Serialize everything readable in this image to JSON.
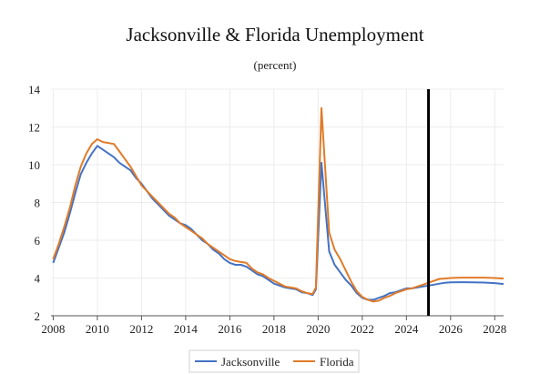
{
  "chart_data": {
    "type": "line",
    "title": "Jacksonville & Florida Unemployment",
    "subtitle": "(percent)",
    "xlabel": "",
    "ylabel": "",
    "xlim": [
      2007.9,
      2028.4
    ],
    "ylim": [
      2,
      14
    ],
    "x_ticks": [
      "2008",
      "2010",
      "2012",
      "2014",
      "2016",
      "2018",
      "2020",
      "2022",
      "2024",
      "2026",
      "2028"
    ],
    "y_ticks": [
      "2",
      "4",
      "6",
      "8",
      "10",
      "12",
      "14"
    ],
    "grid": true,
    "legend_position": "bottom",
    "forecast_line_x": 2025.0,
    "series": [
      {
        "name": "Jacksonville",
        "color": "#4472c4",
        "points": [
          [
            2008.0,
            4.8
          ],
          [
            2008.25,
            5.6
          ],
          [
            2008.5,
            6.4
          ],
          [
            2008.75,
            7.4
          ],
          [
            2009.0,
            8.5
          ],
          [
            2009.25,
            9.5
          ],
          [
            2009.5,
            10.1
          ],
          [
            2009.75,
            10.6
          ],
          [
            2010.0,
            11.0
          ],
          [
            2010.25,
            10.8
          ],
          [
            2010.5,
            10.6
          ],
          [
            2010.75,
            10.4
          ],
          [
            2011.0,
            10.1
          ],
          [
            2011.25,
            9.9
          ],
          [
            2011.5,
            9.7
          ],
          [
            2011.75,
            9.3
          ],
          [
            2012.0,
            9.0
          ],
          [
            2012.25,
            8.6
          ],
          [
            2012.5,
            8.2
          ],
          [
            2012.75,
            7.9
          ],
          [
            2013.0,
            7.6
          ],
          [
            2013.25,
            7.3
          ],
          [
            2013.5,
            7.1
          ],
          [
            2013.75,
            6.9
          ],
          [
            2014.0,
            6.8
          ],
          [
            2014.25,
            6.6
          ],
          [
            2014.5,
            6.3
          ],
          [
            2014.75,
            6.0
          ],
          [
            2015.0,
            5.8
          ],
          [
            2015.25,
            5.5
          ],
          [
            2015.5,
            5.3
          ],
          [
            2015.75,
            5.0
          ],
          [
            2016.0,
            4.8
          ],
          [
            2016.25,
            4.7
          ],
          [
            2016.5,
            4.7
          ],
          [
            2016.75,
            4.6
          ],
          [
            2017.0,
            4.4
          ],
          [
            2017.25,
            4.2
          ],
          [
            2017.5,
            4.1
          ],
          [
            2017.75,
            3.9
          ],
          [
            2018.0,
            3.7
          ],
          [
            2018.25,
            3.6
          ],
          [
            2018.5,
            3.5
          ],
          [
            2018.75,
            3.45
          ],
          [
            2019.0,
            3.4
          ],
          [
            2019.25,
            3.25
          ],
          [
            2019.5,
            3.2
          ],
          [
            2019.75,
            3.1
          ],
          [
            2019.9,
            3.4
          ],
          [
            2020.15,
            10.1
          ],
          [
            2020.5,
            5.4
          ],
          [
            2020.75,
            4.7
          ],
          [
            2021.0,
            4.3
          ],
          [
            2021.25,
            3.9
          ],
          [
            2021.5,
            3.6
          ],
          [
            2021.75,
            3.2
          ],
          [
            2022.0,
            2.95
          ],
          [
            2022.25,
            2.85
          ],
          [
            2022.5,
            2.85
          ],
          [
            2022.75,
            2.95
          ],
          [
            2023.0,
            3.05
          ],
          [
            2023.25,
            3.2
          ],
          [
            2023.5,
            3.25
          ],
          [
            2023.75,
            3.35
          ],
          [
            2024.0,
            3.45
          ],
          [
            2024.25,
            3.45
          ],
          [
            2024.5,
            3.5
          ],
          [
            2024.75,
            3.55
          ],
          [
            2025.0,
            3.6
          ],
          [
            2025.25,
            3.65
          ],
          [
            2025.5,
            3.7
          ],
          [
            2025.75,
            3.75
          ],
          [
            2026.0,
            3.77
          ],
          [
            2026.5,
            3.78
          ],
          [
            2027.0,
            3.77
          ],
          [
            2027.5,
            3.76
          ],
          [
            2028.0,
            3.73
          ],
          [
            2028.4,
            3.68
          ]
        ]
      },
      {
        "name": "Florida",
        "color": "#e07b28",
        "points": [
          [
            2008.0,
            5.0
          ],
          [
            2008.25,
            5.8
          ],
          [
            2008.5,
            6.7
          ],
          [
            2008.75,
            7.7
          ],
          [
            2009.0,
            8.9
          ],
          [
            2009.25,
            9.9
          ],
          [
            2009.5,
            10.6
          ],
          [
            2009.75,
            11.1
          ],
          [
            2010.0,
            11.35
          ],
          [
            2010.25,
            11.2
          ],
          [
            2010.5,
            11.15
          ],
          [
            2010.75,
            11.1
          ],
          [
            2011.0,
            10.7
          ],
          [
            2011.25,
            10.3
          ],
          [
            2011.5,
            9.9
          ],
          [
            2011.75,
            9.4
          ],
          [
            2012.0,
            8.9
          ],
          [
            2012.25,
            8.6
          ],
          [
            2012.5,
            8.3
          ],
          [
            2012.75,
            8.0
          ],
          [
            2013.0,
            7.7
          ],
          [
            2013.25,
            7.4
          ],
          [
            2013.5,
            7.2
          ],
          [
            2013.75,
            6.9
          ],
          [
            2014.0,
            6.7
          ],
          [
            2014.25,
            6.5
          ],
          [
            2014.5,
            6.3
          ],
          [
            2014.75,
            6.1
          ],
          [
            2015.0,
            5.8
          ],
          [
            2015.25,
            5.6
          ],
          [
            2015.5,
            5.4
          ],
          [
            2015.75,
            5.2
          ],
          [
            2016.0,
            5.0
          ],
          [
            2016.25,
            4.9
          ],
          [
            2016.5,
            4.85
          ],
          [
            2016.75,
            4.8
          ],
          [
            2017.0,
            4.5
          ],
          [
            2017.25,
            4.3
          ],
          [
            2017.5,
            4.2
          ],
          [
            2017.75,
            4.0
          ],
          [
            2018.0,
            3.85
          ],
          [
            2018.25,
            3.7
          ],
          [
            2018.5,
            3.55
          ],
          [
            2018.75,
            3.5
          ],
          [
            2019.0,
            3.45
          ],
          [
            2019.25,
            3.3
          ],
          [
            2019.5,
            3.2
          ],
          [
            2019.75,
            3.15
          ],
          [
            2019.9,
            3.5
          ],
          [
            2020.15,
            13.0
          ],
          [
            2020.5,
            6.4
          ],
          [
            2020.75,
            5.5
          ],
          [
            2021.0,
            5.0
          ],
          [
            2021.25,
            4.4
          ],
          [
            2021.5,
            3.8
          ],
          [
            2021.75,
            3.3
          ],
          [
            2022.0,
            3.0
          ],
          [
            2022.25,
            2.85
          ],
          [
            2022.5,
            2.75
          ],
          [
            2022.75,
            2.8
          ],
          [
            2023.0,
            2.95
          ],
          [
            2023.25,
            3.05
          ],
          [
            2023.5,
            3.2
          ],
          [
            2023.75,
            3.3
          ],
          [
            2024.0,
            3.4
          ],
          [
            2024.25,
            3.45
          ],
          [
            2024.5,
            3.55
          ],
          [
            2024.75,
            3.65
          ],
          [
            2025.0,
            3.75
          ],
          [
            2025.25,
            3.85
          ],
          [
            2025.5,
            3.95
          ],
          [
            2025.75,
            3.97
          ],
          [
            2026.0,
            4.0
          ],
          [
            2026.5,
            4.02
          ],
          [
            2027.0,
            4.02
          ],
          [
            2027.5,
            4.02
          ],
          [
            2028.0,
            4.0
          ],
          [
            2028.4,
            3.97
          ]
        ]
      }
    ]
  }
}
